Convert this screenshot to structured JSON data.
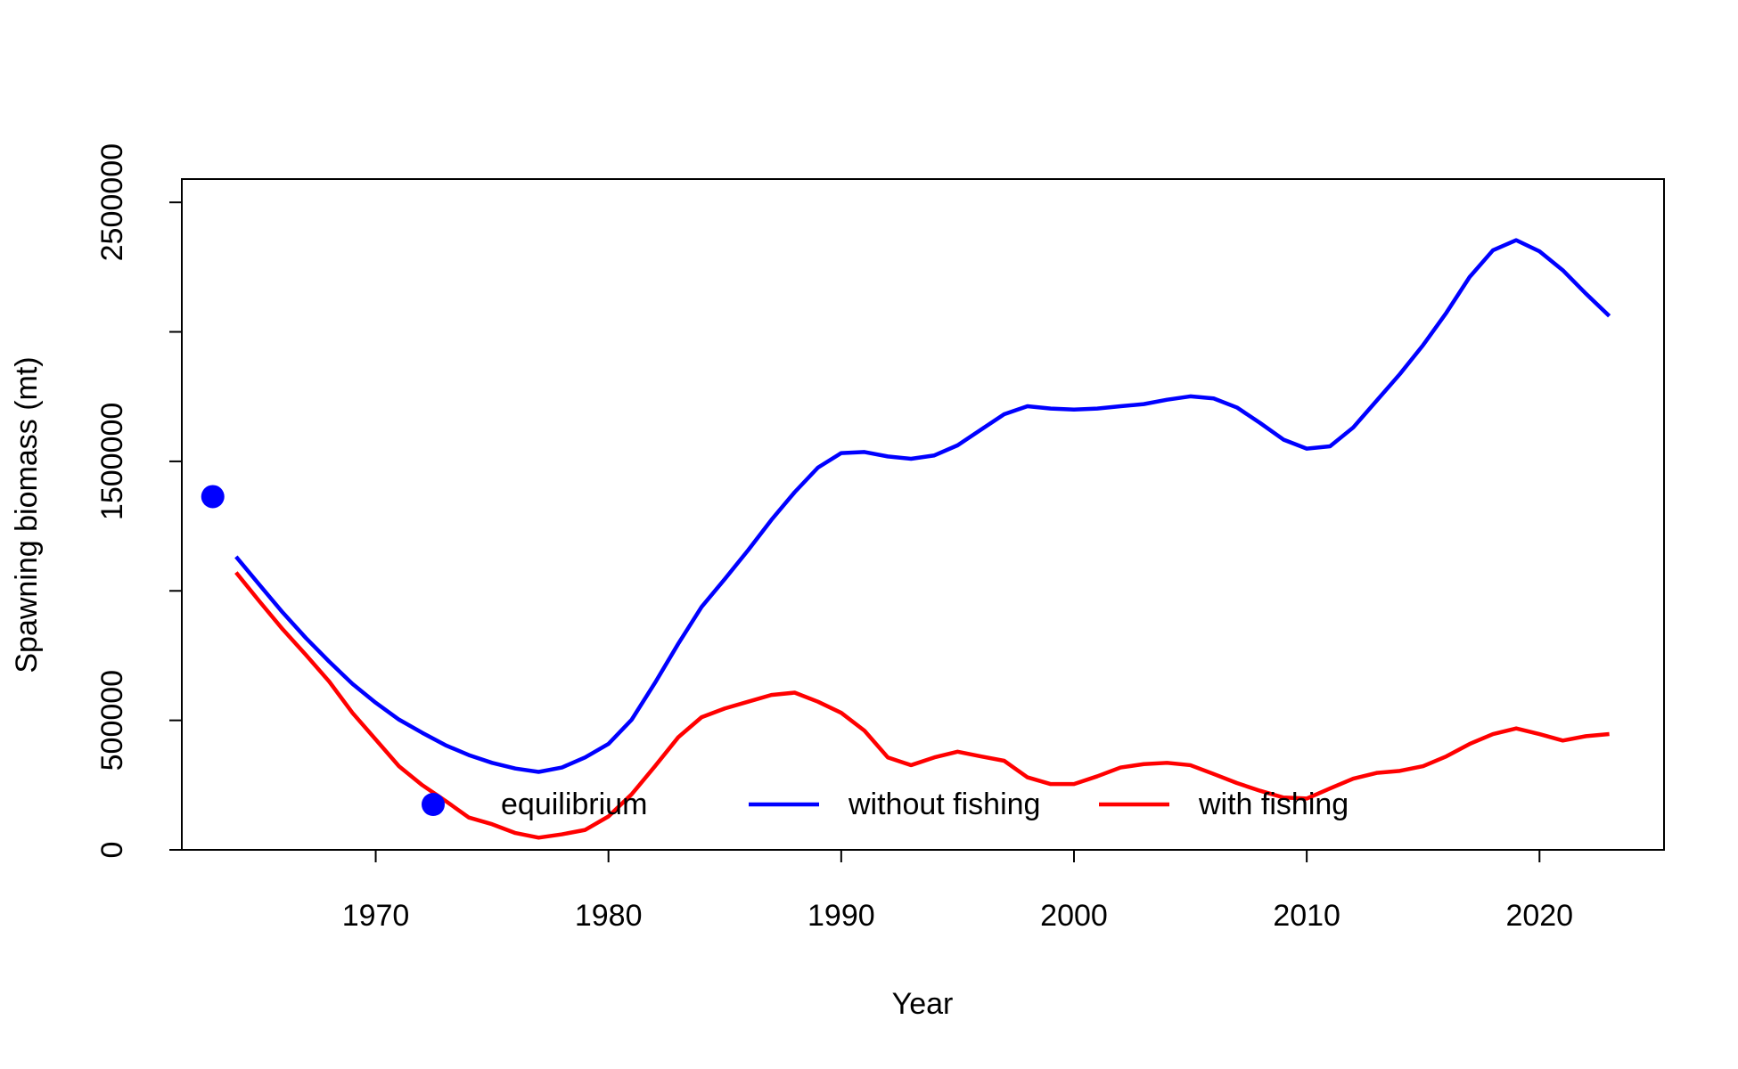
{
  "chart_data": {
    "type": "line",
    "x_label": "Year",
    "y_label": "Spawning biomass (mt)",
    "x": [
      1964,
      1965,
      1966,
      1967,
      1968,
      1969,
      1970,
      1971,
      1972,
      1973,
      1974,
      1975,
      1976,
      1977,
      1978,
      1979,
      1980,
      1981,
      1982,
      1983,
      1984,
      1985,
      1986,
      1987,
      1988,
      1989,
      1990,
      1991,
      1992,
      1993,
      1994,
      1995,
      1996,
      1997,
      1998,
      1999,
      2000,
      2001,
      2002,
      2003,
      2004,
      2005,
      2006,
      2007,
      2008,
      2009,
      2010,
      2011,
      2012,
      2013,
      2014,
      2015,
      2016,
      2017,
      2018,
      2019,
      2020,
      2021,
      2022,
      2023
    ],
    "series": [
      {
        "name": "equilibrium",
        "color": "#0000ff",
        "style": "point",
        "x": [
          1963
        ],
        "values": [
          1364000
        ]
      },
      {
        "name": "without fishing",
        "color": "#0000ff",
        "style": "line",
        "values": [
          1132000,
          1024000,
          917000,
          818000,
          727000,
          641000,
          568000,
          503000,
          452000,
          404000,
          366000,
          336000,
          314000,
          301000,
          318000,
          357000,
          409000,
          503000,
          645000,
          796000,
          938000,
          1046000,
          1157000,
          1274000,
          1381000,
          1476000,
          1532000,
          1536000,
          1519000,
          1510000,
          1523000,
          1562000,
          1622000,
          1682000,
          1713000,
          1704000,
          1700000,
          1704000,
          1713000,
          1721000,
          1738000,
          1751000,
          1743000,
          1708000,
          1648000,
          1584000,
          1549000,
          1558000,
          1631000,
          1734000,
          1837000,
          1949000,
          2074000,
          2212000,
          2315000,
          2354000,
          2311000,
          2238000,
          2147000,
          2061000
        ]
      },
      {
        "name": "with fishing",
        "color": "#ff0000",
        "style": "line",
        "values": [
          1071000,
          960000,
          852000,
          753000,
          650000,
          529000,
          426000,
          323000,
          250000,
          189000,
          125000,
          99000,
          65000,
          47000,
          60000,
          77000,
          129000,
          215000,
          323000,
          435000,
          512000,
          546000,
          572000,
          598000,
          607000,
          572000,
          529000,
          460000,
          357000,
          327000,
          357000,
          379000,
          361000,
          344000,
          280000,
          254000,
          254000,
          284000,
          318000,
          331000,
          336000,
          327000,
          293000,
          258000,
          228000,
          202000,
          198000,
          237000,
          275000,
          297000,
          305000,
          323000,
          361000,
          409000,
          447000,
          469000,
          447000,
          422000,
          439000,
          447000
        ]
      }
    ],
    "xlim": [
      1961.67,
      2025.35
    ],
    "ylim": [
      0,
      2590000
    ],
    "xticks": [
      1970,
      1980,
      1990,
      2000,
      2010,
      2020
    ],
    "yticks": [
      0,
      500000,
      1500000,
      2500000
    ],
    "yticks_unlabeled": [
      1000000,
      2000000
    ],
    "legend": "bottom"
  }
}
